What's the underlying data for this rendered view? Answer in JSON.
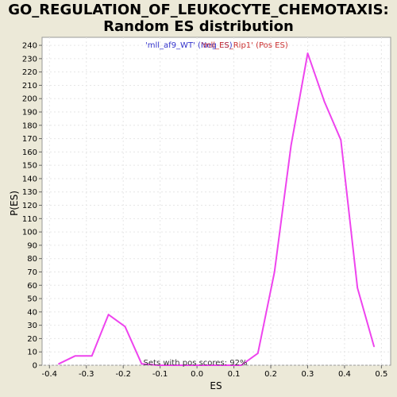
{
  "chart_data": {
    "type": "line",
    "title_line1": "GO_REGULATION_OF_LEUKOCYTE_CHEMOTAXIS:",
    "title_line2": "Random ES distribution",
    "xlabel": "ES",
    "ylabel": "P(ES)",
    "xlim": [
      -0.42,
      0.525
    ],
    "ylim": [
      0,
      246
    ],
    "x_ticks": [
      -0.4,
      -0.3,
      -0.2,
      -0.1,
      0.0,
      0.1,
      0.2,
      0.3,
      0.4,
      0.5
    ],
    "x_tick_labels": [
      "-0.4",
      "-0.3",
      "-0.2",
      "-0.1",
      "0.0",
      "0.1",
      "0.2",
      "0.3",
      "0.4",
      "0.5"
    ],
    "y_ticks": [
      0,
      10,
      20,
      30,
      40,
      50,
      60,
      70,
      80,
      90,
      100,
      110,
      120,
      130,
      140,
      150,
      160,
      170,
      180,
      190,
      200,
      210,
      220,
      230,
      240
    ],
    "grid": true,
    "legend": [
      {
        "label": "'mll_af9_WT' (Neg ES)",
        "color": "#3333cc"
      },
      {
        "label": "'mll_ES_Rip1' (Pos ES)",
        "color": "#cc3333"
      }
    ],
    "annotation": "Sets with pos scores: 92%",
    "series": [
      {
        "color": "#ee44ee",
        "x": [
          -0.375,
          -0.33,
          -0.285,
          -0.24,
          -0.195,
          -0.15,
          -0.105,
          -0.06,
          -0.015,
          0.03,
          0.075,
          0.12,
          0.165,
          0.21,
          0.255,
          0.3,
          0.345,
          0.39,
          0.435,
          0.48
        ],
        "y": [
          1,
          7,
          7,
          38,
          29,
          1,
          0,
          0,
          0,
          0,
          0,
          0,
          9,
          70,
          165,
          234,
          198,
          169,
          58,
          14
        ]
      }
    ]
  }
}
